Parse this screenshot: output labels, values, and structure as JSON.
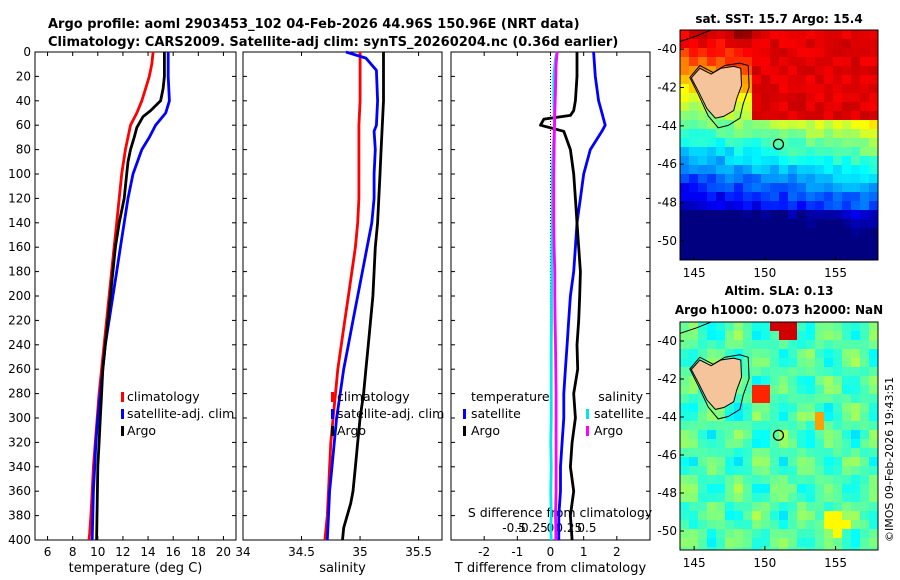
{
  "header": {
    "line1": "Argo profile: aoml 2903453_102 04-Feb-2026 44.96S 150.96E (NRT data)",
    "line2": "Climatology: CARS2009. Satellite-adj clim: synTS_20260204.nc (0.36d earlier)"
  },
  "watermark": "©IMOS 09-Feb-2026 19:43:51",
  "colors": {
    "red": "#ff0000",
    "blue": "#0000ff",
    "black": "#000000",
    "cyan": "#00e5ee",
    "magenta": "#ff00ff",
    "land": "#f5c49a"
  },
  "chart_data": [
    {
      "type": "line",
      "title": "",
      "xlabel": "temperature (deg C)",
      "ylabel": "",
      "xlim": [
        5,
        21
      ],
      "ylim": [
        400,
        0
      ],
      "xticks": [
        6,
        8,
        10,
        12,
        14,
        16,
        18,
        20
      ],
      "xtick_labels": [
        "6",
        "8",
        "10",
        "12",
        "14",
        "16",
        "18",
        "20"
      ],
      "yticks": [
        0,
        20,
        40,
        60,
        80,
        100,
        120,
        140,
        160,
        180,
        200,
        220,
        240,
        260,
        280,
        300,
        320,
        340,
        360,
        380,
        400
      ],
      "ytick_labels": [
        "0",
        "20",
        "40",
        "60",
        "80",
        "100",
        "120",
        "140",
        "160",
        "180",
        "200",
        "220",
        "240",
        "260",
        "280",
        "300",
        "320",
        "340",
        "360",
        "380",
        "400"
      ],
      "legend": [
        "climatology",
        "satellite-adj. clim",
        "Argo"
      ],
      "series": [
        {
          "name": "climatology",
          "color": "#ff0000",
          "x": [
            14.4,
            14.3,
            14.1,
            13.8,
            13.5,
            13.1,
            12.6,
            12.2,
            11.9,
            11.7,
            11.5,
            11.3,
            11.1,
            10.9,
            10.7,
            10.5,
            10.3,
            10.1,
            9.95,
            9.8,
            9.65,
            9.55,
            9.45,
            9.35,
            9.3
          ],
          "y": [
            0,
            10,
            20,
            30,
            40,
            50,
            60,
            80,
            100,
            120,
            140,
            160,
            180,
            200,
            220,
            240,
            260,
            280,
            300,
            320,
            340,
            360,
            380,
            395,
            400
          ]
        },
        {
          "name": "satellite-adj. clim",
          "color": "#0000ff",
          "x": [
            15.6,
            15.6,
            15.6,
            15.7,
            15.4,
            14.6,
            14.1,
            13.5,
            12.8,
            12.4,
            12.1,
            11.8,
            11.5,
            11.2,
            10.9,
            10.6,
            10.4,
            10.2,
            10.0,
            9.85,
            9.75,
            9.65,
            9.6,
            9.55
          ],
          "y": [
            0,
            10,
            20,
            40,
            50,
            60,
            70,
            80,
            100,
            120,
            140,
            160,
            180,
            200,
            220,
            240,
            260,
            280,
            300,
            320,
            340,
            360,
            380,
            400
          ]
        },
        {
          "name": "Argo",
          "color": "#000000",
          "x": [
            15.3,
            15.3,
            15.3,
            15.2,
            15.0,
            14.2,
            13.6,
            13.1,
            12.9,
            12.6,
            12.4,
            12.3,
            12.1,
            11.7,
            11.4,
            11.2,
            11.0,
            10.8,
            10.6,
            10.4,
            10.3,
            10.2,
            10.1,
            10.0,
            9.95,
            9.9
          ],
          "y": [
            0,
            10,
            20,
            30,
            40,
            48,
            53,
            62,
            70,
            80,
            90,
            100,
            120,
            140,
            160,
            180,
            200,
            220,
            240,
            260,
            280,
            300,
            320,
            340,
            370,
            400
          ]
        }
      ]
    },
    {
      "type": "line",
      "title": "",
      "xlabel": "salinity",
      "ylabel": "",
      "xlim": [
        34,
        35.7
      ],
      "ylim": [
        400,
        0
      ],
      "xticks": [
        34,
        34.5,
        35,
        35.5
      ],
      "xtick_labels": [
        "34",
        "34.5",
        "35",
        "35.5"
      ],
      "legend": [
        "climatology",
        "satellite-adj. clim",
        "Argo"
      ],
      "series": [
        {
          "name": "climatology",
          "color": "#ff0000",
          "x": [
            35.0,
            35.0,
            35.0,
            34.99,
            34.99,
            34.99,
            34.99,
            34.99,
            34.98,
            34.96,
            34.93,
            34.9,
            34.87,
            34.84,
            34.81,
            34.79,
            34.77,
            34.75,
            34.74,
            34.73,
            34.72,
            34.71,
            34.7
          ],
          "y": [
            0,
            20,
            40,
            60,
            80,
            100,
            110,
            120,
            140,
            160,
            180,
            200,
            220,
            240,
            260,
            280,
            300,
            320,
            340,
            360,
            380,
            390,
            400
          ]
        },
        {
          "name": "satellite-adj. clim",
          "color": "#0000ff",
          "x": [
            34.88,
            35.05,
            35.14,
            35.15,
            35.14,
            35.12,
            35.13,
            35.12,
            35.12,
            35.1,
            35.06,
            35.02,
            34.98,
            34.94,
            34.9,
            34.86,
            34.83,
            34.8,
            34.78,
            34.76,
            34.74,
            34.73,
            34.72
          ],
          "y": [
            0,
            5,
            15,
            40,
            60,
            65,
            80,
            100,
            120,
            140,
            160,
            180,
            200,
            220,
            240,
            260,
            280,
            300,
            320,
            340,
            360,
            380,
            400
          ]
        },
        {
          "name": "Argo",
          "color": "#000000",
          "x": [
            35.2,
            35.2,
            35.2,
            35.19,
            35.18,
            35.17,
            35.16,
            35.15,
            35.13,
            35.12,
            35.11,
            35.09,
            35.07,
            35.05,
            35.03,
            35.0,
            34.98,
            34.96,
            34.94,
            34.92,
            34.89,
            34.86,
            34.85
          ],
          "y": [
            0,
            20,
            40,
            60,
            80,
            100,
            120,
            140,
            160,
            180,
            200,
            220,
            240,
            260,
            280,
            300,
            320,
            340,
            360,
            370,
            380,
            390,
            400
          ]
        }
      ]
    },
    {
      "type": "line",
      "title": "",
      "xlabel": "T difference from climatology",
      "top_label": "S difference from climatology",
      "xlim": [
        -3,
        3
      ],
      "ylim": [
        400,
        0
      ],
      "xticks": [
        -2,
        -1,
        0,
        1,
        2
      ],
      "xtick_labels": [
        "-2",
        "-1",
        "0",
        "1",
        "2"
      ],
      "top_ticks": [
        -0.5,
        -0.25,
        0,
        0.25,
        0.5
      ],
      "top_tick_labels": [
        "-0.5",
        "-0.25",
        "0",
        "0.25",
        "0.5"
      ],
      "legend_groups": [
        {
          "title": "temperature",
          "entries": [
            "satellite",
            "Argo"
          ]
        },
        {
          "title": "salinity",
          "entries": [
            "satellite",
            "Argo"
          ]
        }
      ],
      "series": [
        {
          "name": "temperature satellite",
          "color": "#0000ff",
          "x": [
            1.3,
            1.35,
            1.45,
            1.5,
            1.65,
            1.55,
            1.2,
            1.0,
            0.9,
            0.8,
            0.75,
            0.7,
            0.6,
            0.55,
            0.5,
            0.45,
            0.4,
            0.4,
            0.35,
            0.3,
            0.3,
            0.25,
            0.25
          ],
          "y": [
            0,
            20,
            40,
            45,
            60,
            65,
            80,
            100,
            120,
            140,
            160,
            180,
            200,
            220,
            240,
            260,
            280,
            300,
            320,
            340,
            360,
            380,
            400
          ]
        },
        {
          "name": "temperature Argo",
          "color": "#000000",
          "x": [
            0.8,
            0.8,
            0.75,
            0.7,
            0.6,
            -0.2,
            -0.3,
            0.4,
            0.6,
            0.7,
            0.75,
            0.8,
            0.85,
            0.9,
            0.88,
            0.85,
            0.8,
            0.82,
            0.7,
            0.75,
            0.65,
            0.6,
            0.7,
            0.6,
            0.65
          ],
          "y": [
            0,
            20,
            40,
            48,
            52,
            55,
            60,
            65,
            80,
            100,
            120,
            140,
            160,
            180,
            200,
            220,
            240,
            260,
            280,
            300,
            320,
            340,
            360,
            380,
            400
          ]
        },
        {
          "name": "salinity satellite",
          "color": "#00e5ee",
          "x": [
            0.2,
            0.15,
            0.1,
            0.1,
            0.12,
            0.08,
            0.05,
            0.06,
            0.05,
            0.04,
            0.04,
            0.03,
            0.03,
            0.02,
            0.02,
            0.02,
            0.02,
            0.01,
            0.02,
            0.01,
            0.02,
            0.01,
            0.02
          ],
          "y": [
            0,
            5,
            20,
            40,
            60,
            80,
            100,
            120,
            140,
            160,
            180,
            200,
            220,
            240,
            260,
            280,
            300,
            320,
            340,
            360,
            380,
            390,
            400
          ]
        },
        {
          "name": "salinity Argo",
          "color": "#ff00ff",
          "x": [
            0.2,
            0.17,
            0.15,
            0.12,
            0.11,
            0.1,
            0.1,
            0.1,
            0.11,
            0.13,
            0.13,
            0.14,
            0.15,
            0.16,
            0.17,
            0.17,
            0.17,
            0.17,
            0.17,
            0.16,
            0.15,
            0.16,
            0.16
          ],
          "y": [
            0,
            10,
            30,
            60,
            80,
            100,
            120,
            140,
            160,
            180,
            200,
            220,
            240,
            260,
            280,
            300,
            320,
            340,
            360,
            370,
            380,
            390,
            400
          ]
        }
      ]
    },
    {
      "type": "heatmap",
      "title": "sat. SST: 15.7 Argo: 15.4",
      "xlim": [
        144,
        158
      ],
      "ylim": [
        -51,
        -39
      ],
      "xticks": [
        145,
        150,
        155
      ],
      "xtick_labels": [
        "145",
        "150",
        "155"
      ],
      "yticks": [
        -40,
        -42,
        -44,
        -46,
        -48,
        -50
      ],
      "ytick_labels": [
        "-40",
        "-42",
        "-44",
        "-46",
        "-48",
        "-50"
      ],
      "float_position": [
        150.96,
        -44.96
      ]
    },
    {
      "type": "heatmap",
      "title_line1": "Altim. SLA: 0.13",
      "title_line2": "Argo h1000: 0.073 h2000: NaN",
      "xlim": [
        144,
        158
      ],
      "ylim": [
        -51,
        -39
      ],
      "xticks": [
        145,
        150,
        155
      ],
      "xtick_labels": [
        "145",
        "150",
        "155"
      ],
      "yticks": [
        -40,
        -42,
        -44,
        -46,
        -48,
        -50
      ],
      "ytick_labels": [
        "-40",
        "-42",
        "-44",
        "-46",
        "-48",
        "-50"
      ],
      "float_position": [
        150.96,
        -44.96
      ]
    }
  ]
}
